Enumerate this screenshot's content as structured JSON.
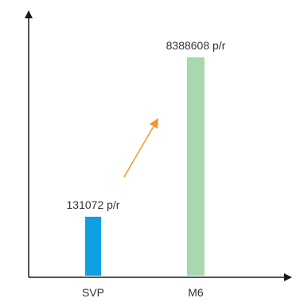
{
  "chart_data": {
    "type": "bar",
    "categories": [
      "SVP",
      "M6"
    ],
    "values": [
      131072,
      8388608
    ],
    "data_labels": [
      "131072 p/r",
      "8388608 p/r"
    ],
    "colors": [
      "#0f9fe2",
      "#a8d8ad"
    ],
    "axis_color": "#1a1a1a",
    "arrow_color": "#f5962a",
    "ylim": [
      0,
      9000000
    ],
    "grid": false,
    "legend": "none",
    "xlabel": "",
    "ylabel": "",
    "annotation": "trend-arrow"
  }
}
